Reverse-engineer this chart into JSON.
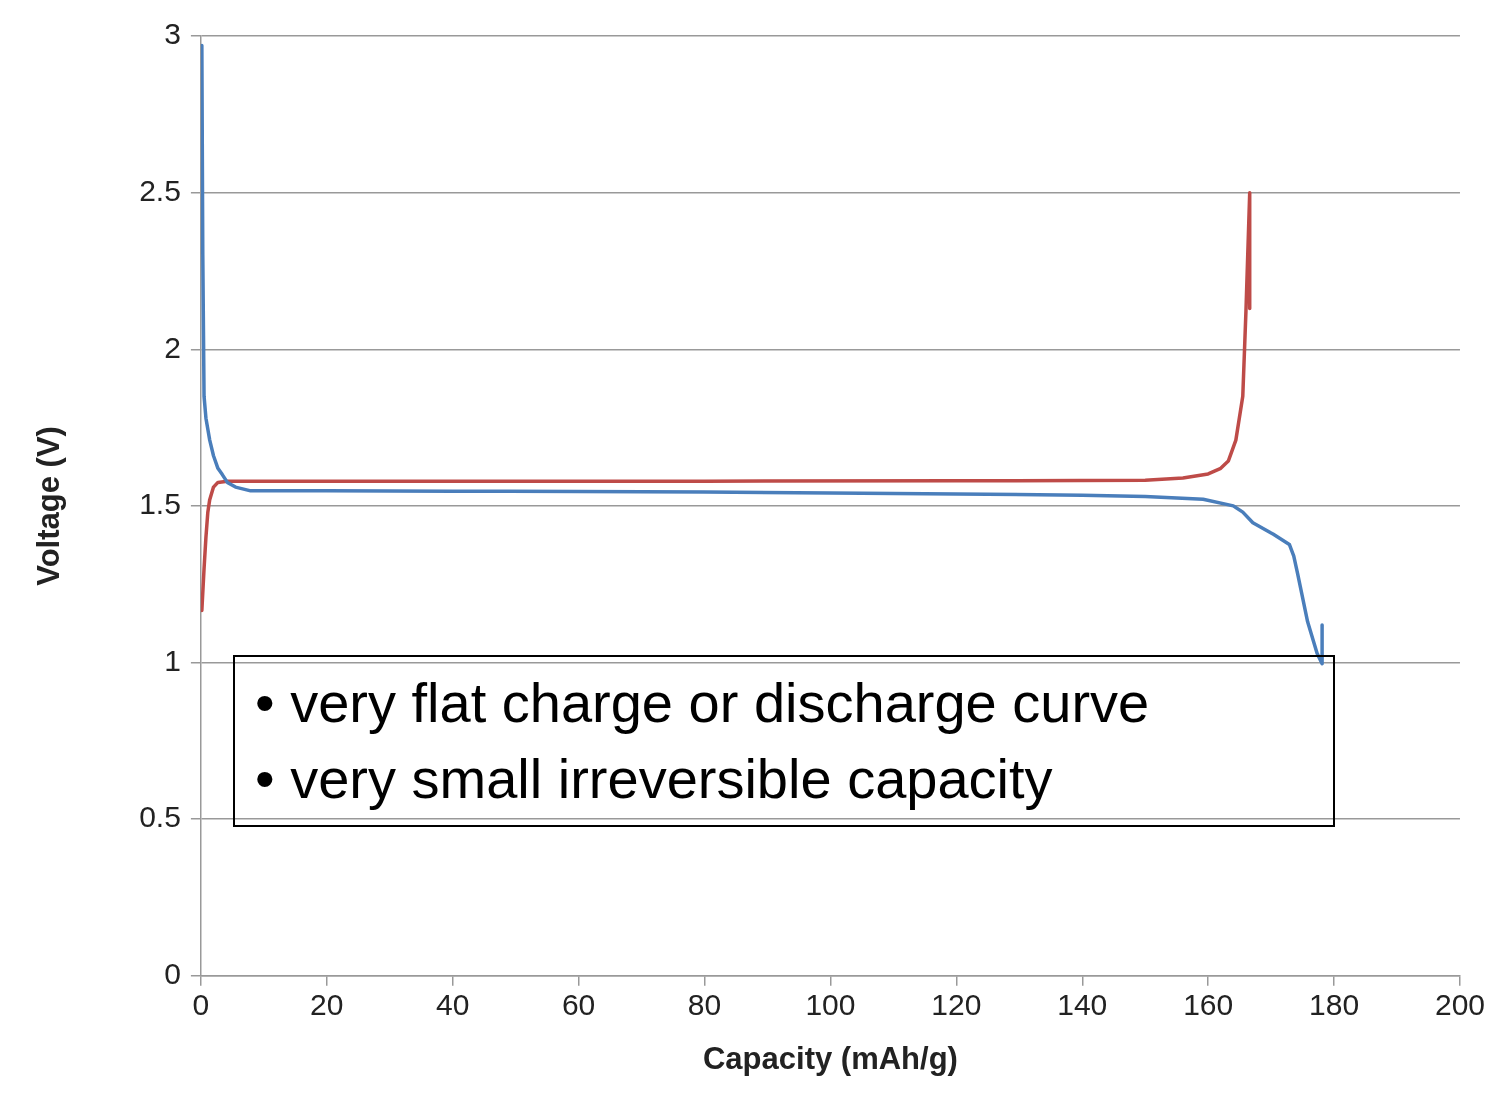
{
  "chart_data": {
    "type": "line",
    "xlabel": "Capacity (mAh/g)",
    "ylabel": "Voltage (V)",
    "xlim": [
      0,
      200
    ],
    "xticks": [
      0,
      20,
      40,
      60,
      80,
      100,
      120,
      140,
      160,
      180,
      200
    ],
    "ylim": [
      0,
      3
    ],
    "yticks": [
      0,
      0.5,
      1,
      1.5,
      2,
      2.5,
      3
    ],
    "grid": "y",
    "legend": false,
    "marker": "none",
    "line_style": "solid",
    "annotations": [
      "• very flat charge or discharge curve",
      "• very small irreversible capacity"
    ],
    "series": [
      {
        "color": "#4a7ebb",
        "x": [
          0.15,
          0.3,
          0.5,
          0.8,
          1.4,
          2.0,
          2.7,
          3.4,
          4.2,
          5.5,
          7.9,
          20,
          40,
          60,
          80,
          100,
          120,
          140,
          150,
          159.2,
          164,
          165.5,
          167.1,
          170.3,
          172.9,
          173.6,
          174.2,
          175.8,
          177.3,
          178.1,
          178.1
        ],
        "values": [
          2.97,
          2.3,
          1.85,
          1.78,
          1.71,
          1.66,
          1.62,
          1.6,
          1.575,
          1.56,
          1.548,
          1.548,
          1.547,
          1.546,
          1.544,
          1.541,
          1.538,
          1.534,
          1.53,
          1.521,
          1.5,
          1.48,
          1.446,
          1.41,
          1.377,
          1.34,
          1.285,
          1.13,
          1.03,
          0.996,
          1.12
        ]
      },
      {
        "color": "#be4b48",
        "x": [
          0.15,
          0.5,
          0.8,
          1.1,
          1.4,
          2.0,
          2.7,
          4.2,
          10,
          40,
          80,
          120,
          150,
          156,
          160,
          162,
          163.2,
          164.4,
          165.5,
          166,
          166.6,
          166.6
        ],
        "values": [
          1.166,
          1.3,
          1.4,
          1.48,
          1.52,
          1.56,
          1.575,
          1.579,
          1.579,
          1.579,
          1.579,
          1.58,
          1.582,
          1.589,
          1.602,
          1.62,
          1.643,
          1.71,
          1.85,
          2.12,
          2.5,
          2.13
        ]
      }
    ]
  }
}
